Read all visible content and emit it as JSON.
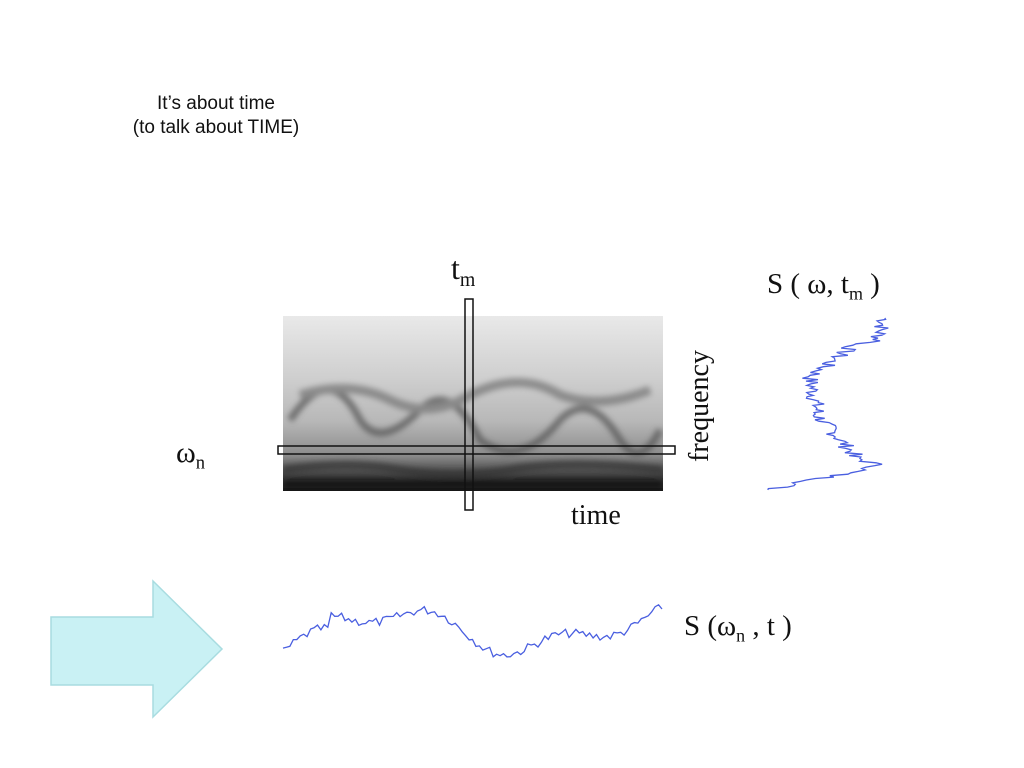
{
  "slide": {
    "title_line1": "It’s about time",
    "title_line2": "(to talk about TIME)"
  },
  "spectrogram": {
    "label_tm_base": "t",
    "label_tm_sub": "m",
    "label_omega_base": "ω",
    "label_omega_sub": "n",
    "label_time": "time",
    "label_frequency": "frequency"
  },
  "spectrum_slice": {
    "label_prefix": "S ( ω, t",
    "label_sub": "m",
    "label_suffix": " )"
  },
  "time_slice": {
    "label_prefix": "S (ω",
    "label_sub": "n",
    "label_suffix": " , t )"
  },
  "colors": {
    "trace": "#4a5fe0",
    "arrow_fill": "#c9f1f4",
    "arrow_stroke": "#a8dce0",
    "spectrogram_dark": "#1a1a1a"
  }
}
